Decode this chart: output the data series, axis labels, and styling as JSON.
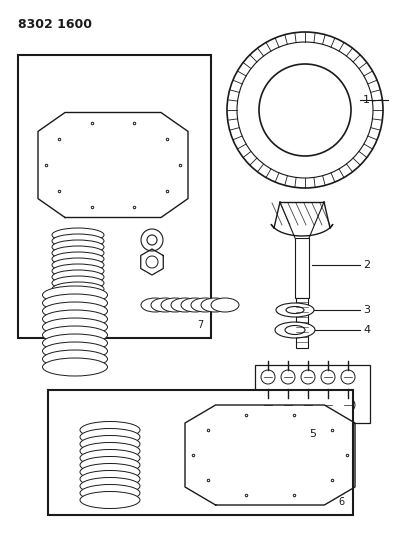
{
  "title": "8302 1600",
  "background_color": "#ffffff",
  "line_color": "#1a1a1a",
  "figsize": [
    4.1,
    5.33
  ],
  "dpi": 100
}
